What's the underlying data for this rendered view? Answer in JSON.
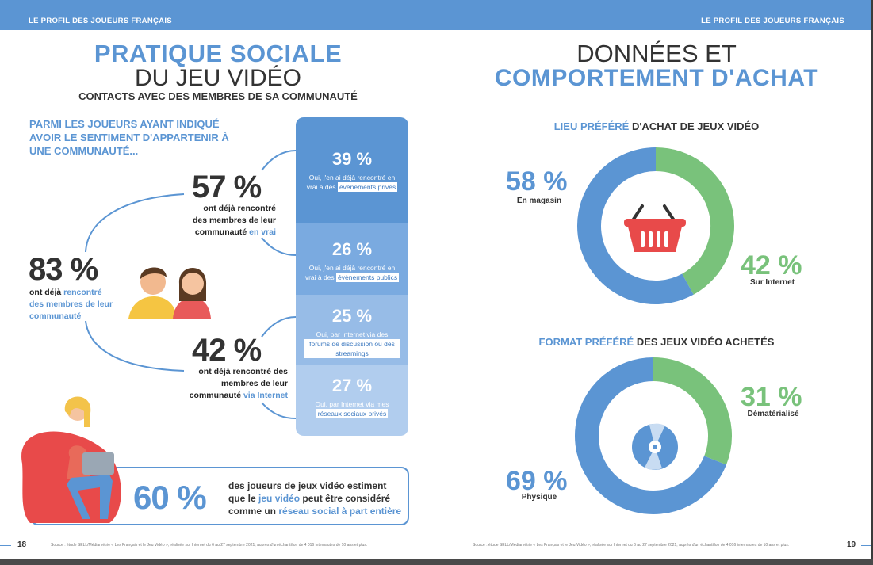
{
  "header": {
    "left_label": "LE PROFIL DES JOUEURS FRANÇAIS",
    "right_label": "LE PROFIL DES JOUEURS FRANÇAIS"
  },
  "left_page": {
    "title_line1": "PRATIQUE SOCIALE",
    "title_line2": "DU JEU VIDÉO",
    "subtitle": "CONTACTS AVEC DES MEMBRES DE SA COMMUNAUTÉ",
    "intro": "PARMI LES JOUEURS AYANT INDIQUÉ AVOIR LE SENTIMENT D'APPARTENIR À UNE COMMUNAUTÉ...",
    "stat_83": {
      "value": "83 %",
      "text_a": "ont déjà ",
      "text_hl": "rencontré des membres de leur communauté",
      "text_b": ""
    },
    "stat_57": {
      "value": "57 %",
      "text_a": "ont déjà rencontré des membres de leur communauté ",
      "text_hl": "en vrai"
    },
    "stat_42": {
      "value": "42 %",
      "text_a": "ont déjà rencontré des membres de leur communauté ",
      "text_hl": "via Internet"
    },
    "cards": [
      {
        "value": "39 %",
        "text": "Oui, j'en ai déjà rencontré en vrai à des",
        "tag": "évènements privés",
        "color": "#5b95d3"
      },
      {
        "value": "26 %",
        "text": "Oui, j'en ai déjà rencontré en vrai à des",
        "tag": "évènements publics",
        "color": "#7aaae0"
      },
      {
        "value": "25 %",
        "text": "Oui, par Internet via des",
        "tag": "forums de discussion ou des streamings",
        "color": "#97bce7"
      },
      {
        "value": "27 %",
        "text": "Oui, par Internet via mes",
        "tag": "réseaux sociaux privés",
        "color": "#b1cdee"
      }
    ],
    "stat_60": {
      "value": "60 %",
      "line1": "des joueurs de jeux vidéo estiment",
      "line2_a": "que le ",
      "line2_hl": "jeu vidéo",
      "line2_b": " peut être considéré",
      "line3_a": "comme un ",
      "line3_hl": "réseau social à part entière"
    },
    "footer": "Source : étude SELL/Médiamétrie « Les Français et le Jeu Vidéo », réalisée sur Internet du 6 au 27 septembre 2021, auprès d'un échantillon de 4 016 internautes de 10 ans et plus.",
    "page_number": "18"
  },
  "right_page": {
    "title_line1": "DONNÉES ET",
    "title_line2": "COMPORTEMENT D'ACHAT",
    "section1": {
      "title_hl": "LIEU PRÉFÉRÉ",
      "title_rest": " D'ACHAT DE JEUX VIDÉO"
    },
    "section2": {
      "title_hl": "FORMAT PRÉFÉRÉ",
      "title_rest": " DES JEUX VIDÉO ACHETÉS"
    },
    "footer": "Source : étude SELL/Médiamétrie « Les Français et le Jeu Vidéo », réalisée sur Internet du 6 au 27 septembre 2021, auprès d'un échantillon de 4 016 internautes de 10 ans et plus.",
    "page_number": "19"
  },
  "chart_data": [
    {
      "type": "pie",
      "title": "LIEU PRÉFÉRÉ D'ACHAT DE JEUX VIDÉO",
      "categories": [
        "En magasin",
        "Sur Internet"
      ],
      "values": [
        58,
        42
      ],
      "labels": [
        "58 %",
        "42 %"
      ],
      "colors": [
        "#5b95d3",
        "#79c27b"
      ]
    },
    {
      "type": "pie",
      "title": "FORMAT PRÉFÉRÉ DES JEUX VIDÉO ACHETÉS",
      "categories": [
        "Physique",
        "Dématérialisé"
      ],
      "values": [
        69,
        31
      ],
      "labels": [
        "69 %",
        "31 %"
      ],
      "colors": [
        "#5b95d3",
        "#79c27b"
      ]
    }
  ]
}
